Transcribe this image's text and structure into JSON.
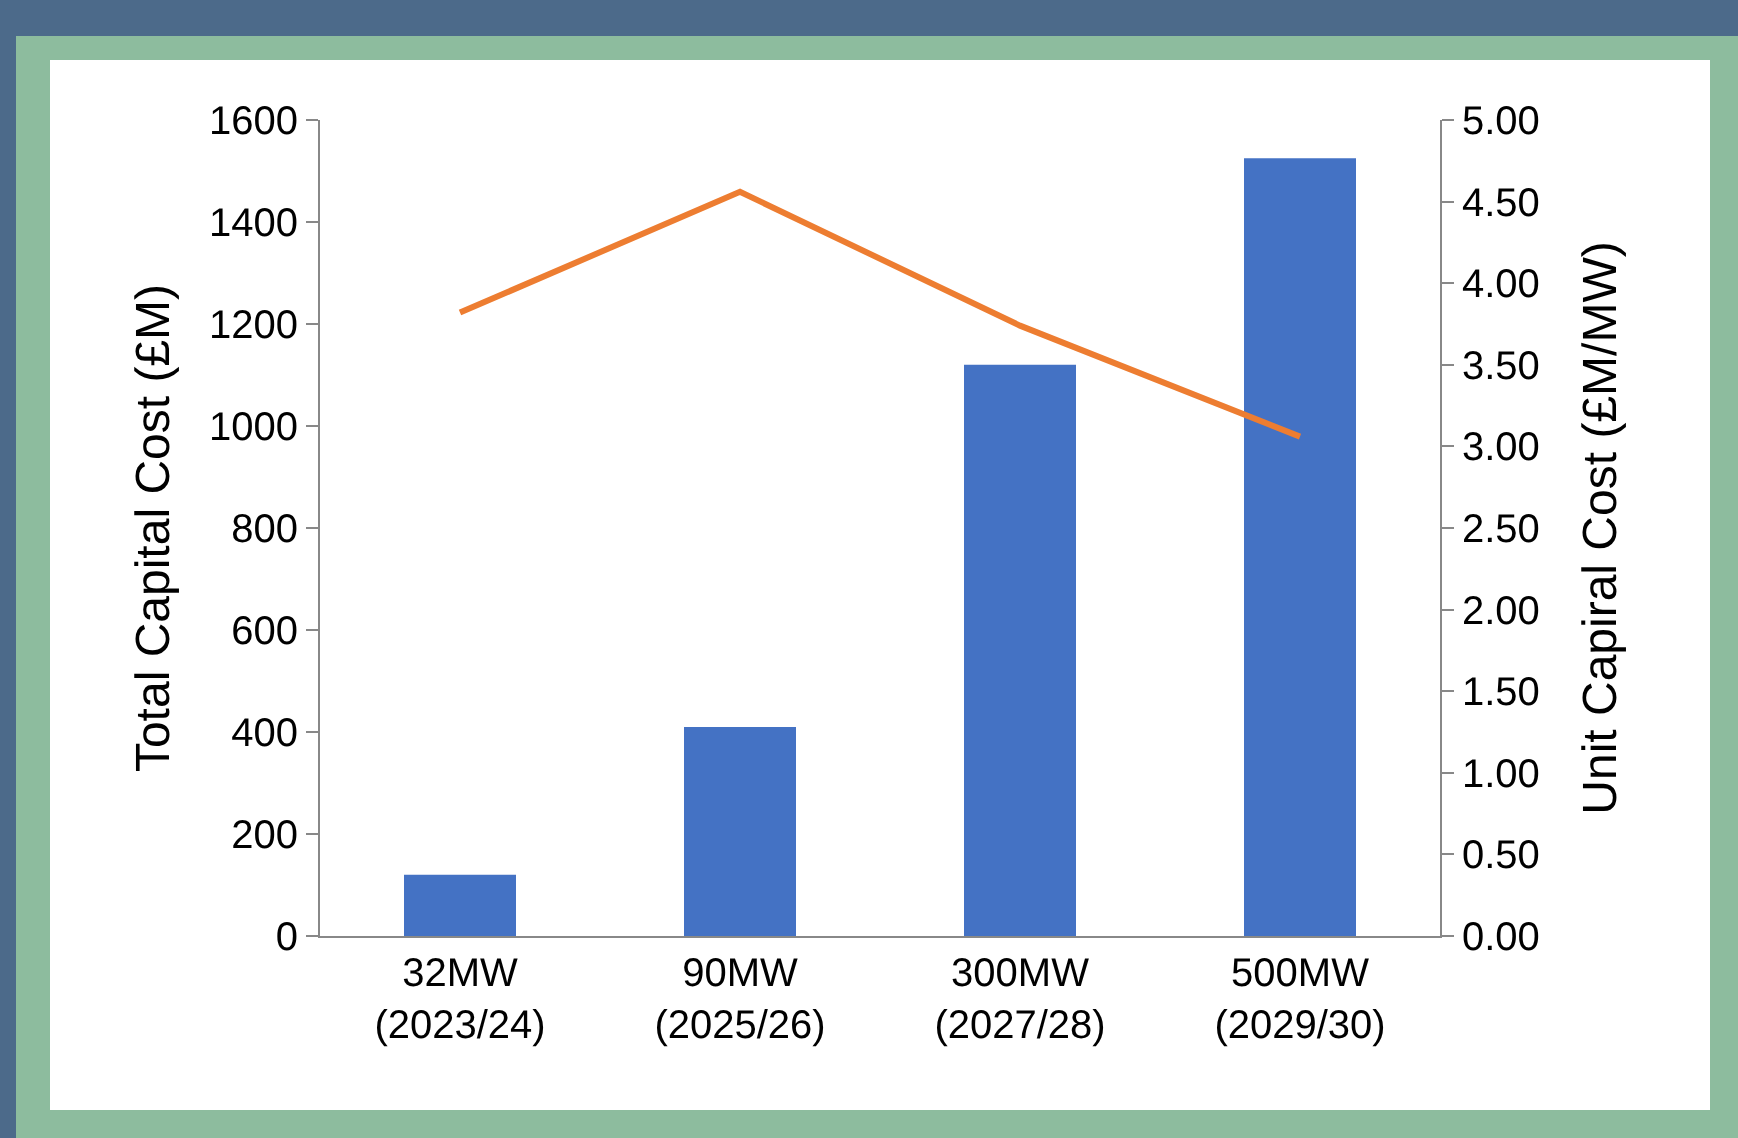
{
  "chart_data": {
    "type": "bar",
    "categories": [
      "32MW\n(2023/24)",
      "90MW\n(2025/26)",
      "300MW\n(2027/28)",
      "500MW\n(2029/30)"
    ],
    "ylabel": "Total Capital Cost (£M)",
    "y2label": "Unit Capiral Cost (£M/MW)",
    "ylim": [
      0,
      1600
    ],
    "yticks": [
      0,
      200,
      400,
      600,
      800,
      1000,
      1200,
      1400,
      1600
    ],
    "y2lim": [
      0,
      5
    ],
    "y2ticks": [
      {
        "value": 0,
        "label": "0.00"
      },
      {
        "value": 0.5,
        "label": "0.50"
      },
      {
        "value": 1,
        "label": "1.00"
      },
      {
        "value": 1.5,
        "label": "1.50"
      },
      {
        "value": 2,
        "label": "2.00"
      },
      {
        "value": 2.5,
        "label": "2.50"
      },
      {
        "value": 3,
        "label": "3.00"
      },
      {
        "value": 3.5,
        "label": "3.50"
      },
      {
        "value": 4,
        "label": "4.00"
      },
      {
        "value": 4.5,
        "label": "4.50"
      },
      {
        "value": 5,
        "label": "5.00"
      }
    ],
    "series": [
      {
        "color": "#4472c4",
        "values": [
          120,
          410,
          1120,
          1525
        ]
      },
      {
        "type": "line",
        "axis": "y2",
        "color": "#ed7d31",
        "values": [
          3.82,
          4.56,
          3.74,
          3.06
        ]
      }
    ],
    "grid": false,
    "marker": "none"
  }
}
